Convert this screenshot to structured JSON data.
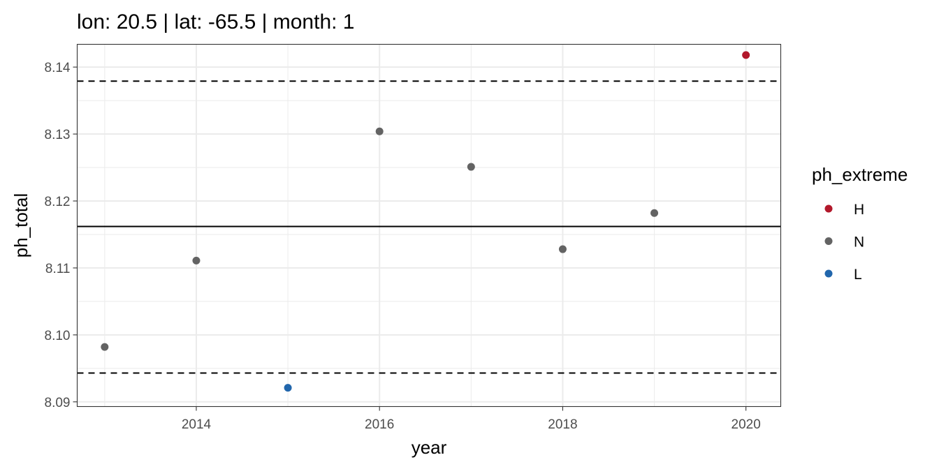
{
  "chart_data": {
    "type": "scatter",
    "title": "lon: 20.5 | lat: -65.5 | month: 1",
    "xlabel": "year",
    "ylabel": "ph_total",
    "xlim": [
      2012.7,
      2020.38
    ],
    "ylim": [
      8.0893,
      8.1434
    ],
    "x_ticks": [
      2014,
      2016,
      2018,
      2020
    ],
    "x_tick_labels": [
      "2014",
      "2016",
      "2018",
      "2020"
    ],
    "x_minor_ticks": [
      2013,
      2015,
      2017,
      2019
    ],
    "y_ticks": [
      8.09,
      8.1,
      8.11,
      8.12,
      8.13,
      8.14
    ],
    "y_tick_labels": [
      "8.09",
      "8.10",
      "8.11",
      "8.12",
      "8.13",
      "8.14"
    ],
    "y_minor_ticks": [
      8.095,
      8.105,
      8.115,
      8.125,
      8.135
    ],
    "grid": true,
    "reference_lines": [
      {
        "y": 8.1379,
        "style": "dashed"
      },
      {
        "y": 8.1162,
        "style": "solid"
      },
      {
        "y": 8.0943,
        "style": "dashed"
      }
    ],
    "points": [
      {
        "x": 2013,
        "y": 8.0982,
        "group": "N"
      },
      {
        "x": 2014,
        "y": 8.1111,
        "group": "N"
      },
      {
        "x": 2015,
        "y": 8.0921,
        "group": "L"
      },
      {
        "x": 2016,
        "y": 8.1304,
        "group": "N"
      },
      {
        "x": 2017,
        "y": 8.1251,
        "group": "N"
      },
      {
        "x": 2018,
        "y": 8.1128,
        "group": "N"
      },
      {
        "x": 2019,
        "y": 8.1182,
        "group": "N"
      },
      {
        "x": 2020,
        "y": 8.1418,
        "group": "H"
      }
    ],
    "legend": {
      "title": "ph_extreme",
      "placement": "right",
      "entries": [
        {
          "label": "H",
          "color": "#b2182b"
        },
        {
          "label": "N",
          "color": "#636363"
        },
        {
          "label": "L",
          "color": "#2166ac"
        }
      ]
    }
  }
}
